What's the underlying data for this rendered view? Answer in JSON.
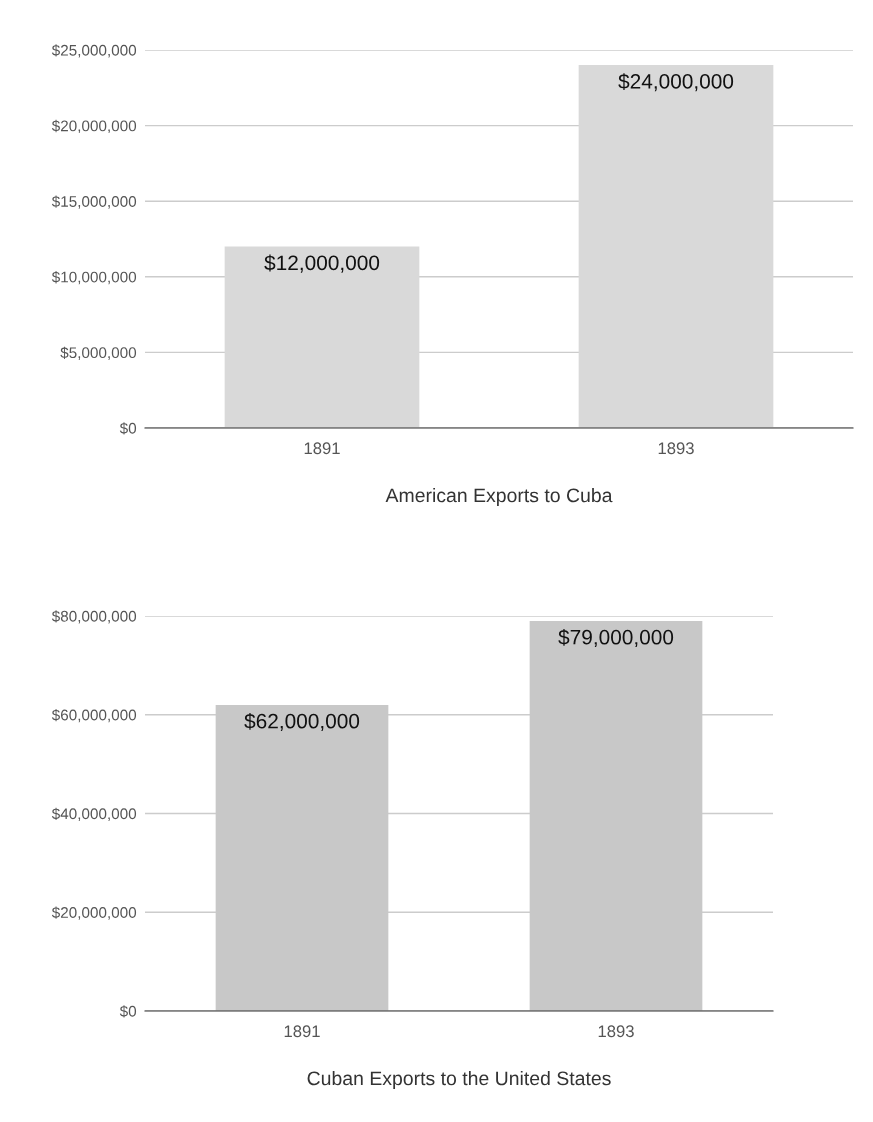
{
  "chart_data": [
    {
      "type": "bar",
      "xlabel": "American Exports to Cuba",
      "categories": [
        "1891",
        "1893"
      ],
      "values": [
        12000000,
        24000000
      ],
      "value_labels": [
        "$12,000,000",
        "$24,000,000"
      ],
      "color": "#d9d9d9",
      "ylim": [
        0,
        25000000
      ],
      "yticks": [
        {
          "value": 0,
          "label": "$0"
        },
        {
          "value": 5000000,
          "label": "$5,000,000"
        },
        {
          "value": 10000000,
          "label": "$10,000,000"
        },
        {
          "value": 15000000,
          "label": "$15,000,000"
        },
        {
          "value": 20000000,
          "label": "$20,000,000"
        },
        {
          "value": 25000000,
          "label": "$25,000,000"
        }
      ],
      "grid": "y",
      "legend": false
    },
    {
      "type": "bar",
      "xlabel": "Cuban Exports to the United States",
      "categories": [
        "1891",
        "1893"
      ],
      "values": [
        62000000,
        79000000
      ],
      "value_labels": [
        "$62,000,000",
        "$79,000,000"
      ],
      "color": "#c8c8c8",
      "ylim": [
        0,
        80000000
      ],
      "yticks": [
        {
          "value": 0,
          "label": "$0"
        },
        {
          "value": 20000000,
          "label": "$20,000,000"
        },
        {
          "value": 40000000,
          "label": "$40,000,000"
        },
        {
          "value": 60000000,
          "label": "$60,000,000"
        },
        {
          "value": 80000000,
          "label": "$80,000,000"
        }
      ],
      "grid": "y",
      "legend": false
    }
  ]
}
